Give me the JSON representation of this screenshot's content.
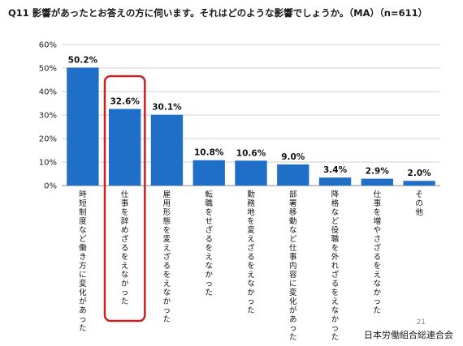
{
  "header": {
    "title": "Q11  影響があったとお答えの方に伺います。それはどのような影響でしょうか。（MA）（n=611）"
  },
  "footer": {
    "page_number": "21",
    "organization": "日本労働組合総連合会"
  },
  "colors": {
    "bar": "#1f6fc8",
    "highlight": "#cc1f1f",
    "grid": "#d0d0d0"
  },
  "chart_data": {
    "type": "bar",
    "categories": [
      "時短制度など働き方に変化があった",
      "仕事を辞めざるをえなかった",
      "雇用形態を変えざるをえなかった",
      "転職をせざるをえなかった",
      "勤務地を変えざるをえなかった",
      "部署移動など仕事内容に変化があった",
      "降格など役職を外れざるをえなかった",
      "仕事を増やさざるをえなかった",
      "その他"
    ],
    "values": [
      50.2,
      32.6,
      30.1,
      10.8,
      10.6,
      9.0,
      3.4,
      2.9,
      2.0
    ],
    "value_labels": [
      "50.2%",
      "32.6%",
      "30.1%",
      "10.8%",
      "10.6%",
      "9.0%",
      "3.4%",
      "2.9%",
      "2.0%"
    ],
    "ylim": [
      0,
      60
    ],
    "yticks": [
      0,
      10,
      20,
      30,
      40,
      50,
      60
    ],
    "ytick_labels": [
      "0%",
      "10%",
      "20%",
      "30%",
      "40%",
      "50%",
      "60%"
    ],
    "grid": true,
    "highlighted_category_index": 1
  }
}
